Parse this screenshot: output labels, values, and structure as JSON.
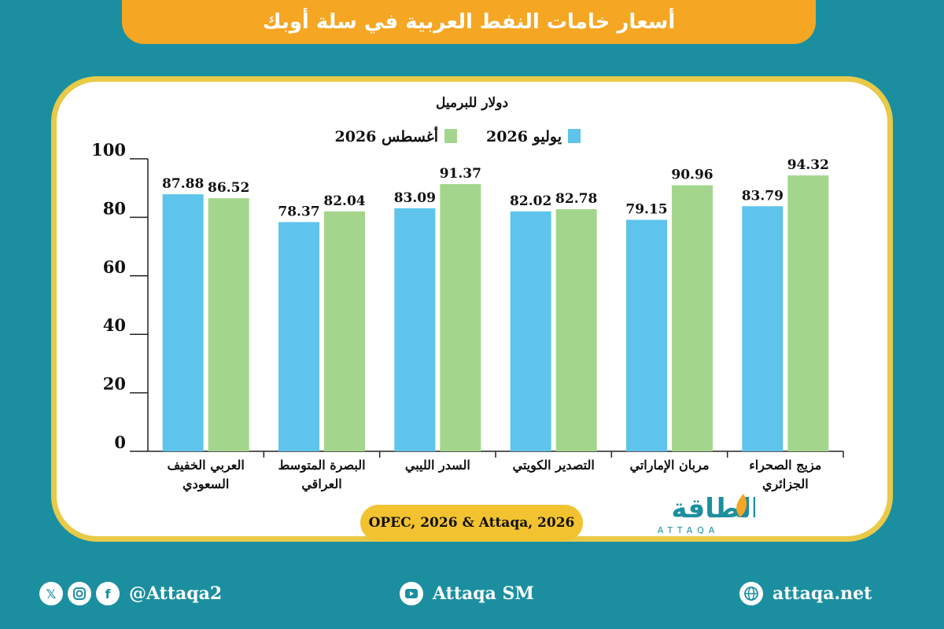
{
  "header": {
    "title": "أسعار خامات النفط العربية في سلة أوبك"
  },
  "colors": {
    "july": "#5ec4ec",
    "august": "#a3d68c",
    "title_bg": "#f5a623",
    "card_border": "#e9c948",
    "background": "#1b8fa0"
  },
  "chart_data": {
    "type": "bar",
    "subtitle": "دولار للبرميل",
    "categories": [
      [
        "العربي الخفيف",
        "السعودي"
      ],
      [
        "البصرة المتوسط",
        "العراقي"
      ],
      [
        "السدر الليبي"
      ],
      [
        "التصدير الكويتي"
      ],
      [
        "مربان الإماراتي"
      ],
      [
        "مزيج الصحراء",
        "الجزائري"
      ]
    ],
    "series": [
      {
        "name": "يوليو 2026",
        "values": [
          87.88,
          78.37,
          83.09,
          82.02,
          79.15,
          83.79
        ]
      },
      {
        "name": "أغسطس 2026",
        "values": [
          86.52,
          82.04,
          91.37,
          82.78,
          90.96,
          94.32
        ]
      }
    ],
    "yticks": [
      "0",
      "20",
      "40",
      "60",
      "80",
      "100"
    ],
    "ylim": [
      0,
      100
    ],
    "legend_position": "top"
  },
  "source": {
    "text": "OPEC, 2026 & Attaqa, 2026"
  },
  "logo": {
    "arabic": "الطاقة",
    "latin": "ATTAQA"
  },
  "footer": {
    "social_handle": "@Attaqa2",
    "youtube": "Attaqa SM",
    "website": "attaqa.net",
    "icons": [
      "x-icon",
      "instagram-icon",
      "facebook-icon",
      "youtube-icon",
      "globe-icon"
    ]
  }
}
